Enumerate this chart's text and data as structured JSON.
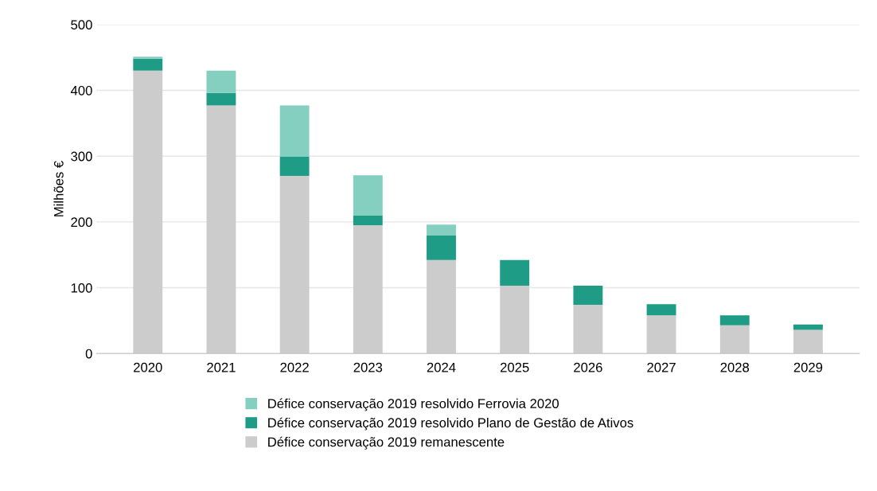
{
  "chart_data": {
    "type": "bar",
    "stacked": true,
    "ylabel": "Milhões €",
    "categories": [
      "2020",
      "2021",
      "2022",
      "2023",
      "2024",
      "2025",
      "2026",
      "2027",
      "2028",
      "2029"
    ],
    "series": [
      {
        "name": "Défice conservação 2019 remanescente",
        "color": "#cccccc",
        "values": [
          430,
          377,
          270,
          195,
          142,
          103,
          74,
          58,
          43,
          36
        ]
      },
      {
        "name": "Défice conservação 2019 resolvido Plano de Gestão de Ativos",
        "color": "#1f9c86",
        "values": [
          18,
          19,
          29,
          15,
          38,
          39,
          29,
          17,
          15,
          8
        ]
      },
      {
        "name": "Défice conservação 2019 resolvido Ferrovia 2020",
        "color": "#85cfc0",
        "values": [
          3,
          34,
          78,
          61,
          16,
          null,
          null,
          null,
          null,
          null
        ]
      }
    ],
    "ylim": [
      0,
      500
    ],
    "yticks": [
      0,
      100,
      200,
      300,
      400,
      500
    ],
    "grid": "y",
    "legend": "bottom"
  }
}
